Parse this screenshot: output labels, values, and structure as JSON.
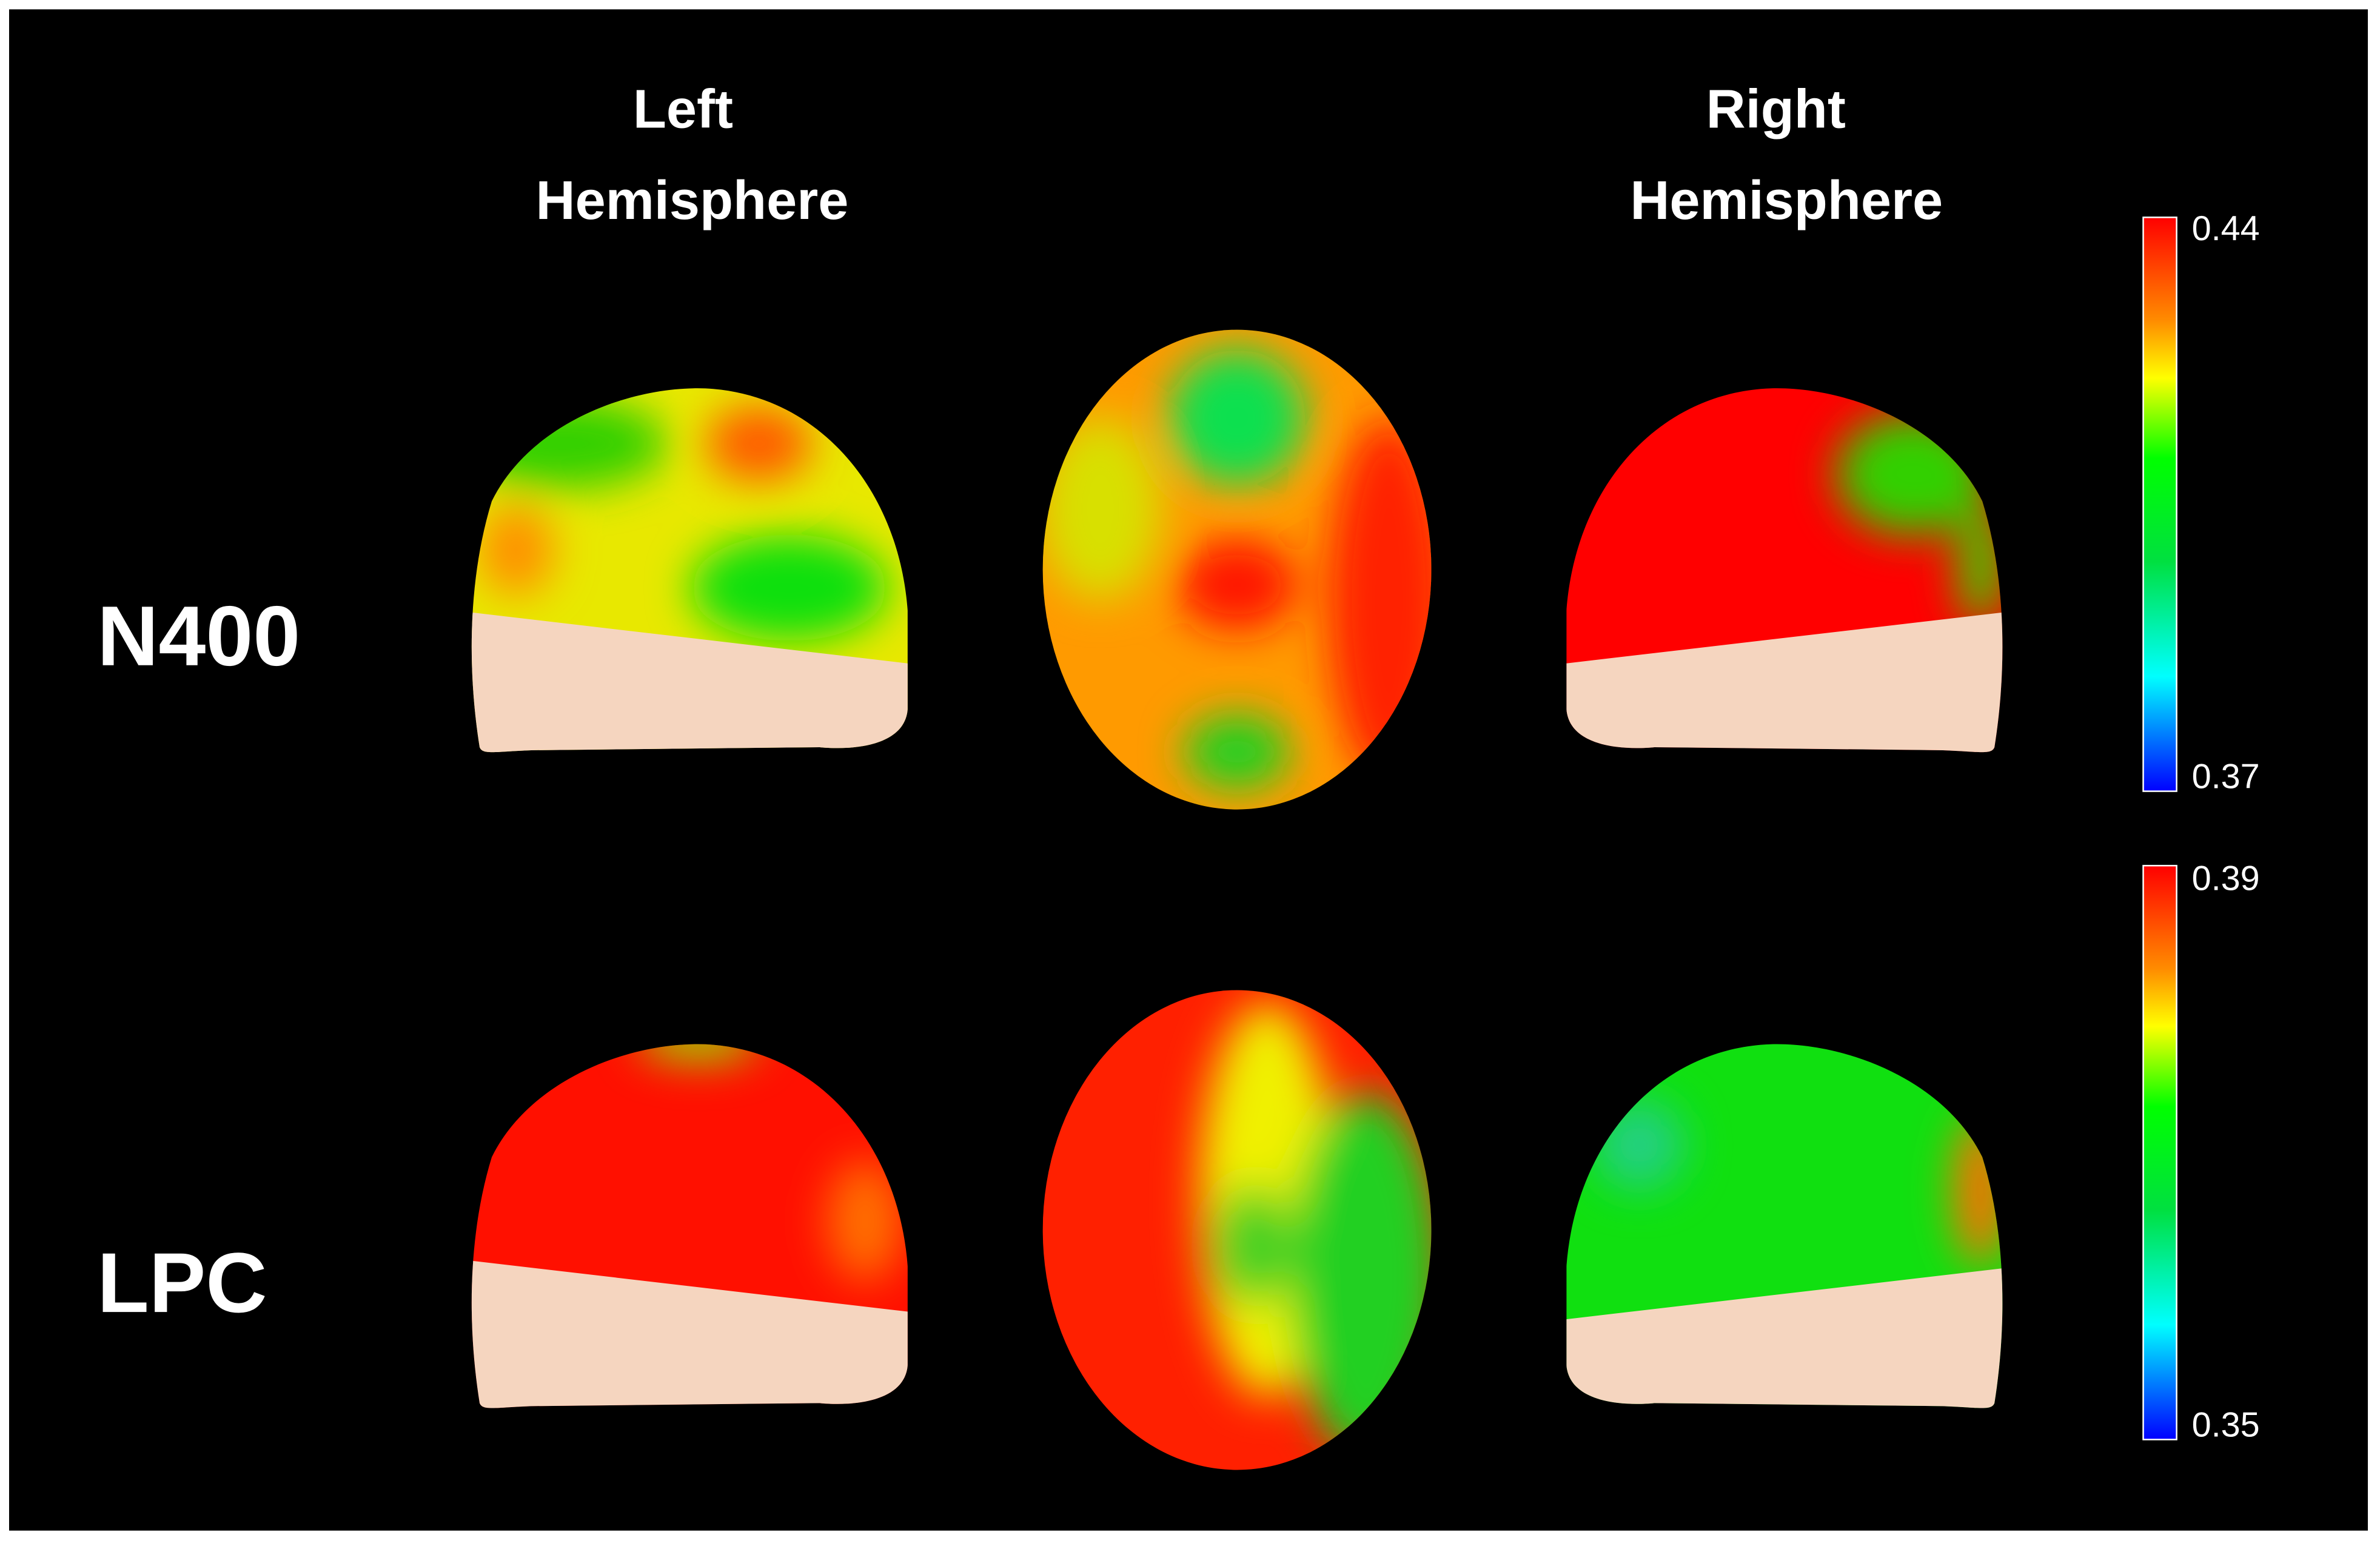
{
  "columns": [
    {
      "line1": "Left",
      "line2": "Hemisphere"
    },
    {
      "line1": "Right",
      "line2": "Hemisphere"
    }
  ],
  "rows": [
    "N400",
    "LPC"
  ],
  "colorbars": [
    {
      "max": 0.44,
      "min": 0.37
    },
    {
      "max": 0.39,
      "min": 0.35
    }
  ]
}
